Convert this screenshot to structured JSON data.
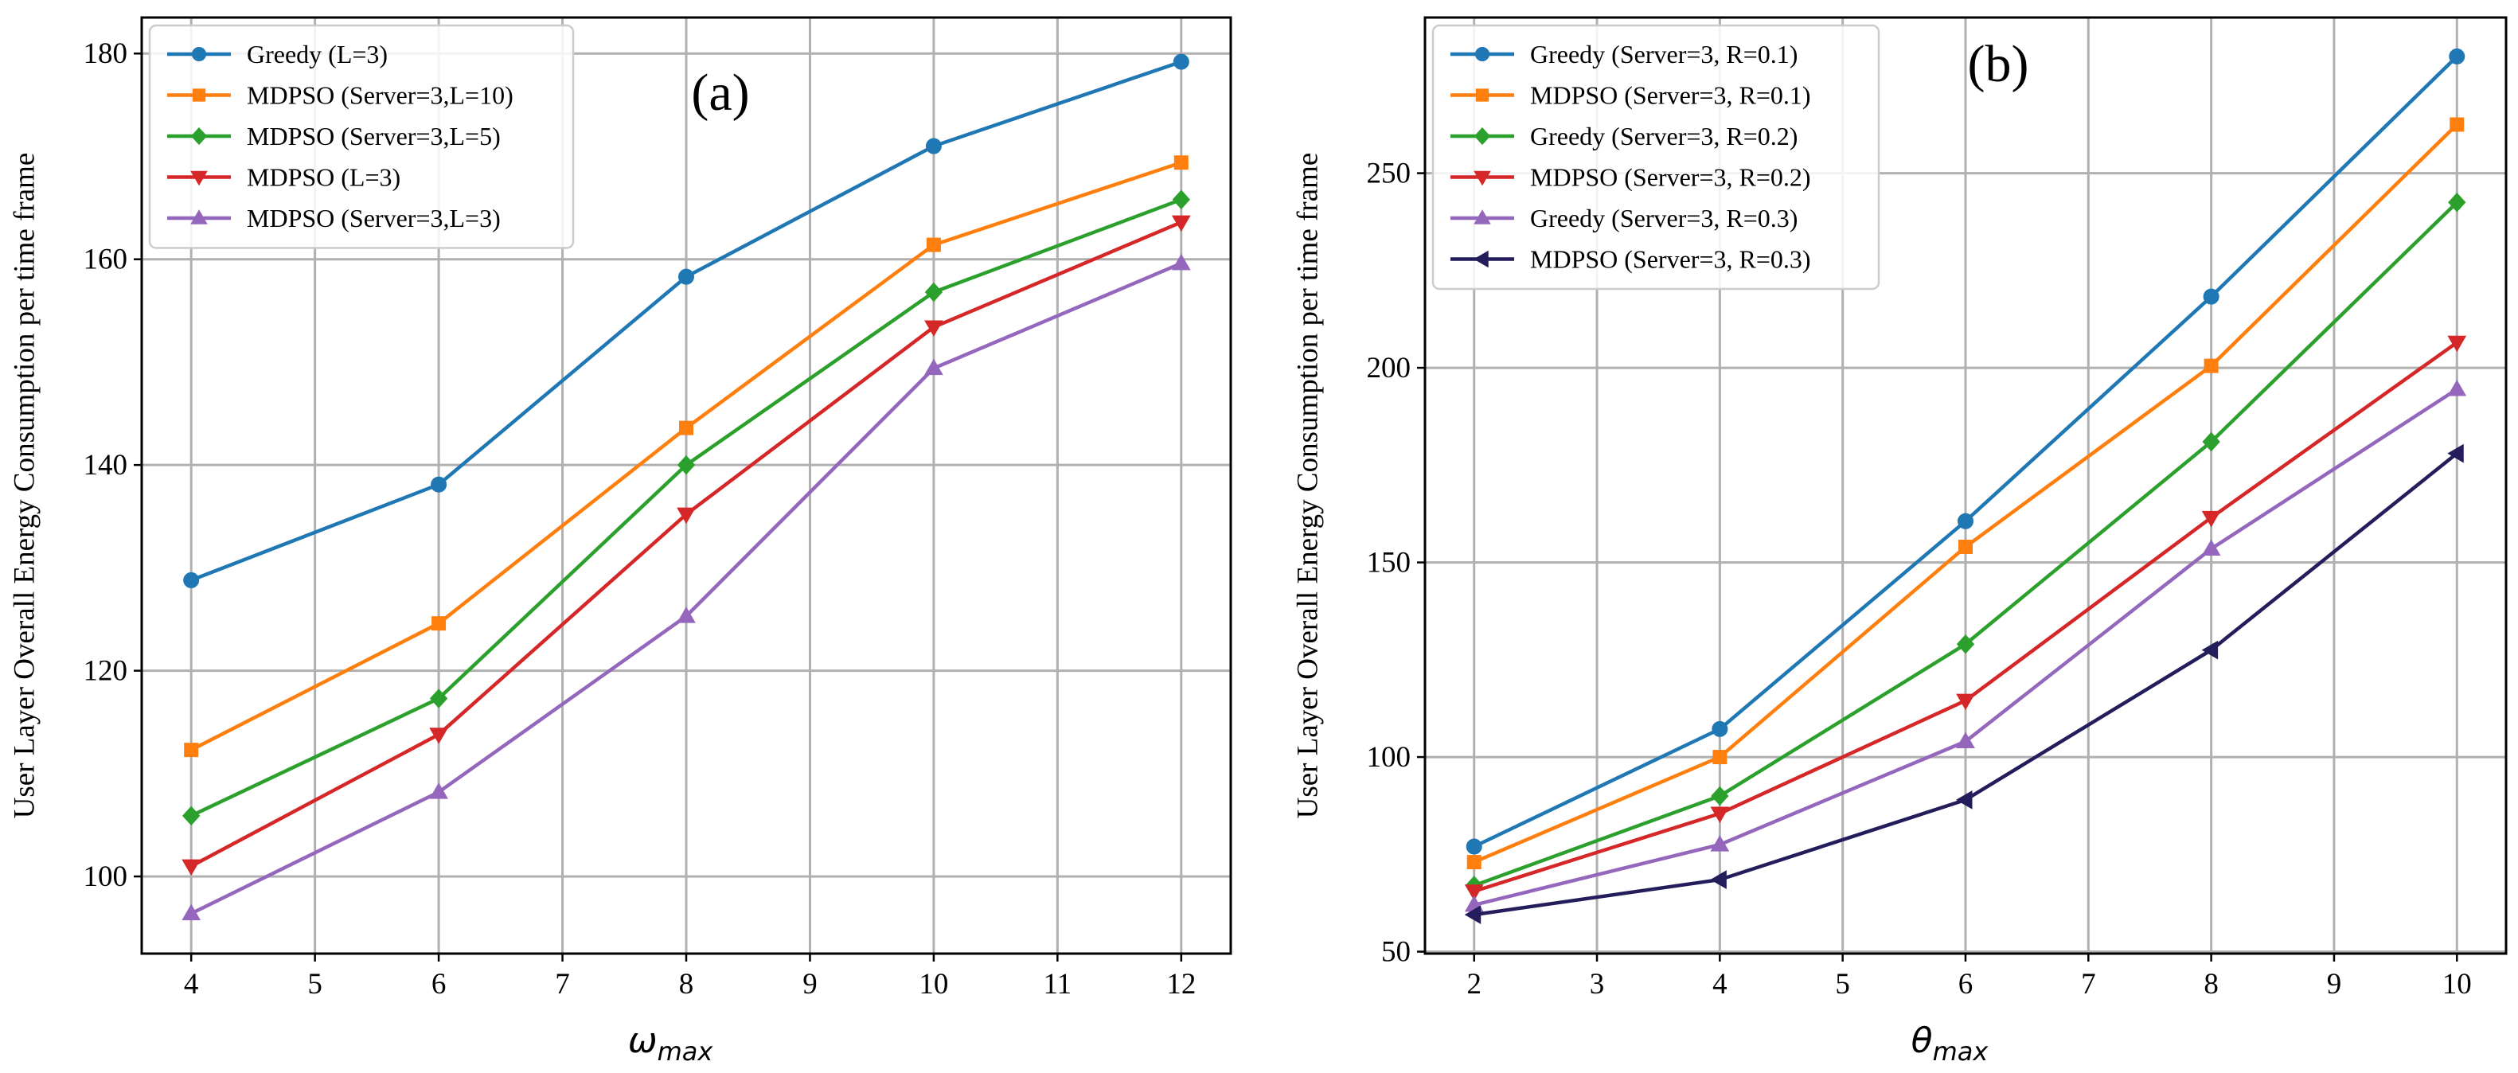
{
  "chart_data": [
    {
      "type": "line",
      "panel_label": "(a)",
      "ylabel": "User Layer Overall Energy Consumption per time frame",
      "xlabel_symbol": "ω",
      "xlabel_sub": "max",
      "xlim": [
        3.6,
        12.4
      ],
      "ylim": [
        92.5,
        183.5
      ],
      "xticks": [
        4,
        5,
        6,
        7,
        8,
        9,
        10,
        11,
        12
      ],
      "yticks": [
        100,
        120,
        140,
        160,
        180
      ],
      "legend_position": "top-left",
      "series": [
        {
          "name": "Greedy (L=3)",
          "color": "#1f77b4",
          "marker": "circle",
          "x": [
            4,
            6,
            8,
            10,
            12
          ],
          "values": [
            128.8,
            138.1,
            158.3,
            171.0,
            179.2
          ]
        },
        {
          "name": "MDPSO (Server=3,L=10)",
          "color": "#ff7f0e",
          "marker": "square",
          "x": [
            4,
            6,
            8,
            10,
            12
          ],
          "values": [
            112.3,
            124.6,
            143.6,
            161.4,
            169.4
          ]
        },
        {
          "name": "MDPSO (Server=3,L=5)",
          "color": "#2ca02c",
          "marker": "diamond",
          "x": [
            4,
            6,
            8,
            10,
            12
          ],
          "values": [
            105.9,
            117.3,
            140.0,
            156.8,
            165.8
          ]
        },
        {
          "name": "MDPSO (L=3)",
          "color": "#d62728",
          "marker": "triangle-down",
          "x": [
            4,
            6,
            8,
            10,
            12
          ],
          "values": [
            101.0,
            113.8,
            135.2,
            153.4,
            163.6
          ]
        },
        {
          "name": "MDPSO (Server=3,L=3)",
          "color": "#9467bd",
          "marker": "triangle-up",
          "x": [
            4,
            6,
            8,
            10,
            12
          ],
          "values": [
            96.4,
            108.2,
            125.3,
            149.4,
            159.6
          ]
        }
      ]
    },
    {
      "type": "line",
      "panel_label": "(b)",
      "ylabel": "User Layer Overall Energy Consumption per time frame",
      "xlabel_symbol": "θ",
      "xlabel_sub": "max",
      "xlim": [
        1.6,
        10.4
      ],
      "ylim": [
        49.5,
        290.0
      ],
      "xticks": [
        2,
        3,
        4,
        5,
        6,
        7,
        8,
        9,
        10
      ],
      "yticks": [
        50,
        100,
        150,
        200,
        250
      ],
      "legend_position": "top-left",
      "series": [
        {
          "name": "Greedy (Server=3, R=0.1)",
          "color": "#1f77b4",
          "marker": "circle",
          "x": [
            2,
            4,
            6,
            8,
            10
          ],
          "values": [
            77.0,
            107.2,
            160.6,
            218.3,
            280.0
          ]
        },
        {
          "name": "MDPSO (Server=3, R=0.1)",
          "color": "#ff7f0e",
          "marker": "square",
          "x": [
            2,
            4,
            6,
            8,
            10
          ],
          "values": [
            73.0,
            100.0,
            154.0,
            200.5,
            262.5
          ]
        },
        {
          "name": "Greedy (Server=3, R=0.2)",
          "color": "#2ca02c",
          "marker": "diamond",
          "x": [
            2,
            4,
            6,
            8,
            10
          ],
          "values": [
            67.0,
            90.0,
            129.0,
            181.0,
            242.5
          ]
        },
        {
          "name": "MDPSO (Server=3, R=0.2)",
          "color": "#d62728",
          "marker": "triangle-down",
          "x": [
            2,
            4,
            6,
            8,
            10
          ],
          "values": [
            65.5,
            85.5,
            114.5,
            161.5,
            206.5
          ]
        },
        {
          "name": "Greedy (Server=3, R=0.3)",
          "color": "#9467bd",
          "marker": "triangle-up",
          "x": [
            2,
            4,
            6,
            8,
            10
          ],
          "values": [
            62.0,
            77.5,
            104.0,
            153.5,
            194.5
          ]
        },
        {
          "name": "MDPSO (Server=3, R=0.3)",
          "color": "#241d5c",
          "marker": "triangle-left",
          "x": [
            2,
            4,
            6,
            8,
            10
          ],
          "values": [
            59.5,
            68.5,
            89.0,
            127.5,
            178.0
          ]
        }
      ]
    }
  ]
}
